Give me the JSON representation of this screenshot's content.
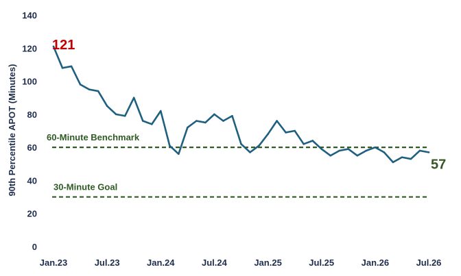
{
  "chart_data": {
    "type": "line",
    "title": "",
    "ylabel": "90th Percentile APOT (Minutes)",
    "xlabel": "",
    "ylim": [
      0,
      140
    ],
    "yticks": [
      0,
      20,
      40,
      60,
      80,
      100,
      120,
      140
    ],
    "xtick_labels": [
      "Jan.23",
      "Jul.23",
      "Jan.24",
      "Jul.24",
      "Jan.25",
      "Jul.25",
      "Jan.26",
      "Jul.26"
    ],
    "xtick_index": [
      0,
      6,
      12,
      18,
      24,
      30,
      36,
      42
    ],
    "grid": false,
    "legend": "none",
    "series": [
      {
        "color": "#1f5f7f",
        "values": [
          121,
          108,
          109,
          98,
          95,
          94,
          85,
          80,
          79,
          90,
          76,
          74,
          82,
          61,
          56,
          72,
          76,
          75,
          80,
          76,
          79,
          62,
          57,
          61,
          68,
          76,
          69,
          70,
          62,
          64,
          59,
          55,
          58,
          59,
          55,
          58,
          60,
          57,
          51,
          54,
          53,
          58,
          57
        ]
      }
    ],
    "reference_lines": [
      {
        "label": "60-Minute Benchmark",
        "value": 60,
        "color": "#2f5a24",
        "style": "dashed"
      },
      {
        "label": "30-Minute Goal",
        "value": 30,
        "color": "#2f5a24",
        "style": "dashed"
      }
    ],
    "annotations": [
      {
        "text": "121",
        "point_index": 0,
        "color": "#c00000"
      },
      {
        "text": "57",
        "point_index": 42,
        "color": "#375623"
      }
    ]
  }
}
